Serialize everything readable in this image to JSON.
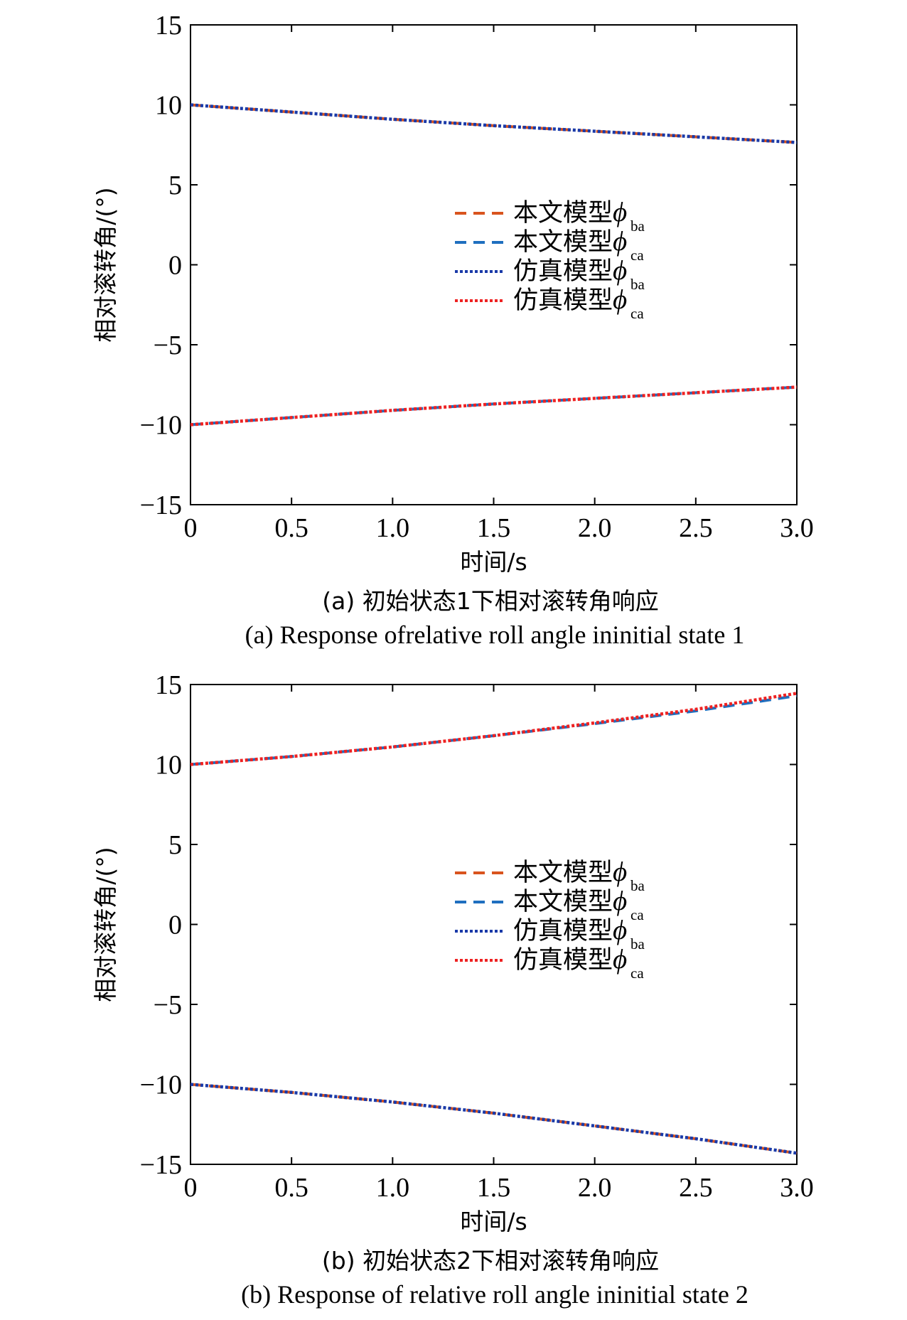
{
  "chart_data": [
    {
      "type": "line",
      "xlabel": "时间/s",
      "ylabel": "相对滚转角/(°)",
      "xlim": [
        0,
        3.0
      ],
      "ylim": [
        -15,
        15
      ],
      "xticks": [
        "0",
        "0.5",
        "1.0",
        "1.5",
        "2.0",
        "2.5",
        "3.0"
      ],
      "yticks": [
        "15",
        "10",
        "5",
        "0",
        "−5",
        "−10",
        "−15"
      ],
      "legend_position": "center-right",
      "x": [
        0,
        0.5,
        1.0,
        1.5,
        2.0,
        2.5,
        3.0
      ],
      "series": [
        {
          "name": "本文模型",
          "sub": "ba",
          "style": "dashed",
          "color": "#d9541e",
          "values": [
            10.0,
            9.55,
            9.1,
            8.7,
            8.35,
            8.0,
            7.65
          ]
        },
        {
          "name": "本文模型",
          "sub": "ca",
          "style": "dashed",
          "color": "#1f6fbf",
          "values": [
            -10.0,
            -9.55,
            -9.1,
            -8.7,
            -8.35,
            -8.0,
            -7.65
          ]
        },
        {
          "name": "仿真模型",
          "sub": "ba",
          "style": "dotted",
          "color": "#1a3aa8",
          "values": [
            10.0,
            9.55,
            9.1,
            8.7,
            8.35,
            8.0,
            7.65
          ]
        },
        {
          "name": "仿真模型",
          "sub": "ca",
          "style": "dotted",
          "color": "#ee2222",
          "values": [
            -10.0,
            -9.55,
            -9.1,
            -8.7,
            -8.35,
            -8.0,
            -7.65
          ]
        }
      ],
      "caption_cn": "(a) 初始状态1下相对滚转角响应",
      "caption_en": "(a) Response ofrelative roll angle ininitial state 1"
    },
    {
      "type": "line",
      "xlabel": "时间/s",
      "ylabel": "相对滚转角/(°)",
      "xlim": [
        0,
        3.0
      ],
      "ylim": [
        -15,
        15
      ],
      "xticks": [
        "0",
        "0.5",
        "1.0",
        "1.5",
        "2.0",
        "2.5",
        "3.0"
      ],
      "yticks": [
        "15",
        "10",
        "5",
        "0",
        "−5",
        "−10",
        "−15"
      ],
      "legend_position": "center-right",
      "x": [
        0,
        0.5,
        1.0,
        1.5,
        2.0,
        2.5,
        3.0
      ],
      "series": [
        {
          "name": "本文模型",
          "sub": "ba",
          "style": "dashed",
          "color": "#d9541e",
          "values": [
            -10.0,
            -10.5,
            -11.1,
            -11.8,
            -12.6,
            -13.4,
            -14.3
          ]
        },
        {
          "name": "本文模型",
          "sub": "ca",
          "style": "dashed",
          "color": "#1f6fbf",
          "values": [
            10.0,
            10.5,
            11.1,
            11.8,
            12.55,
            13.35,
            14.3
          ]
        },
        {
          "name": "仿真模型",
          "sub": "ba",
          "style": "dotted",
          "color": "#1a3aa8",
          "values": [
            -10.0,
            -10.5,
            -11.1,
            -11.8,
            -12.6,
            -13.4,
            -14.3
          ]
        },
        {
          "name": "仿真模型",
          "sub": "ca",
          "style": "dotted",
          "color": "#ee2222",
          "values": [
            10.0,
            10.5,
            11.1,
            11.8,
            12.6,
            13.45,
            14.45
          ]
        }
      ],
      "caption_cn": "(b) 初始状态2下相对滚转角响应",
      "caption_en": "(b) Response of relative roll angle ininitial state 2"
    }
  ]
}
